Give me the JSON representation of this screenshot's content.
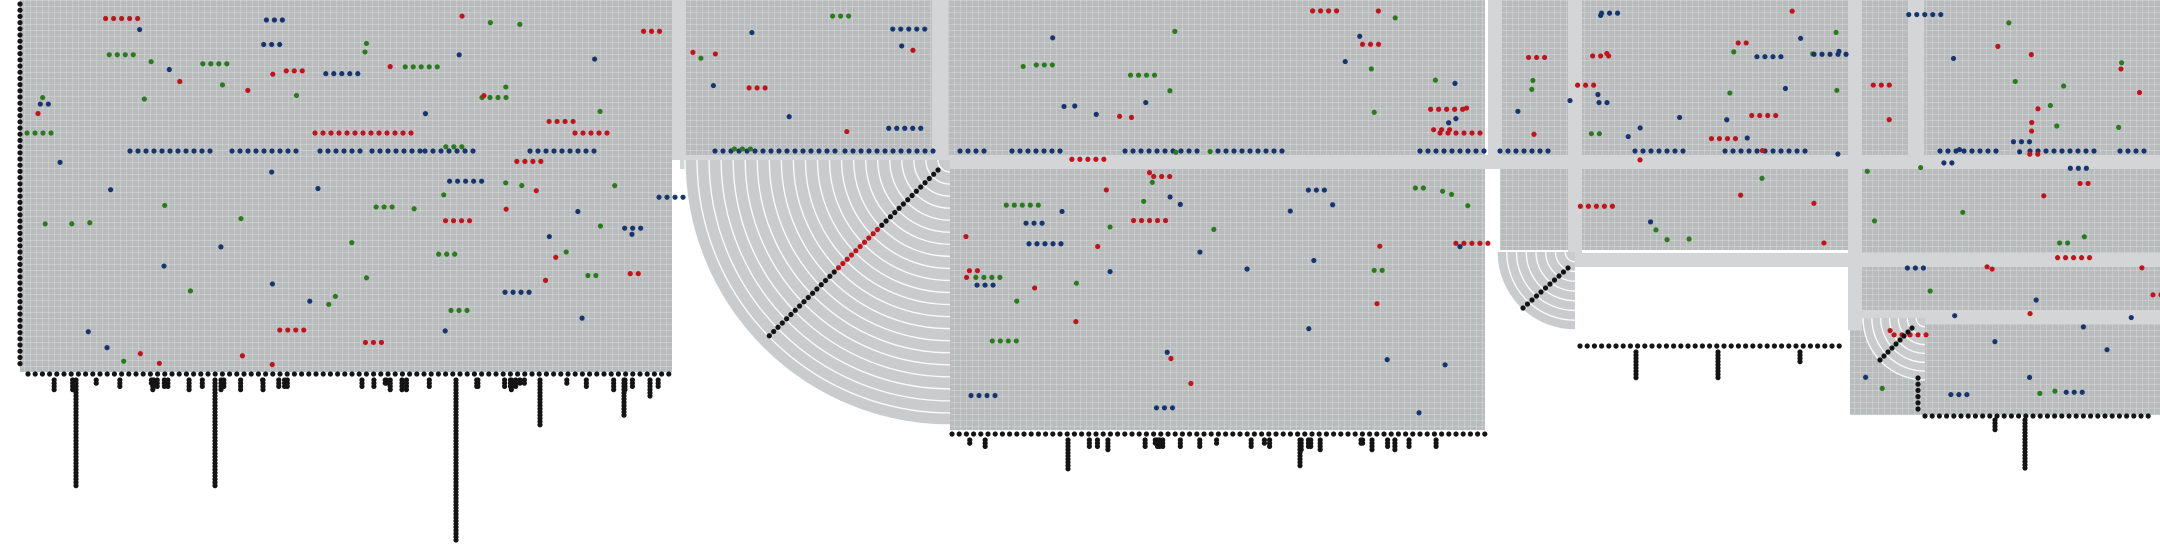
{
  "figure": {
    "kind": "parliament seat-grid diagram",
    "text": []
  },
  "colors": {
    "background": "#ffffff",
    "grid_fill": "#b9bcbd",
    "grid_lines": "#ffffff",
    "band": "#d3d5d6",
    "seat_red": "#c0141d",
    "seat_green": "#2c7a1f",
    "seat_blue": "#16356e",
    "seat_black": "#141414"
  },
  "legend": [
    {
      "key": "red",
      "color": "#c0141d"
    },
    {
      "key": "green",
      "color": "#2c7a1f"
    },
    {
      "key": "blue",
      "color": "#16356e"
    },
    {
      "key": "black",
      "color": "#141414"
    }
  ],
  "panels": [
    {
      "id": "panel-1",
      "type": "grid-block"
    },
    {
      "id": "panel-2",
      "type": "quarter-arc"
    },
    {
      "id": "panel-3",
      "type": "grid-block"
    },
    {
      "id": "panel-4",
      "type": "grid-block"
    },
    {
      "id": "panel-5",
      "type": "grid-block"
    },
    {
      "id": "panel-6",
      "type": "grid-block"
    }
  ]
}
